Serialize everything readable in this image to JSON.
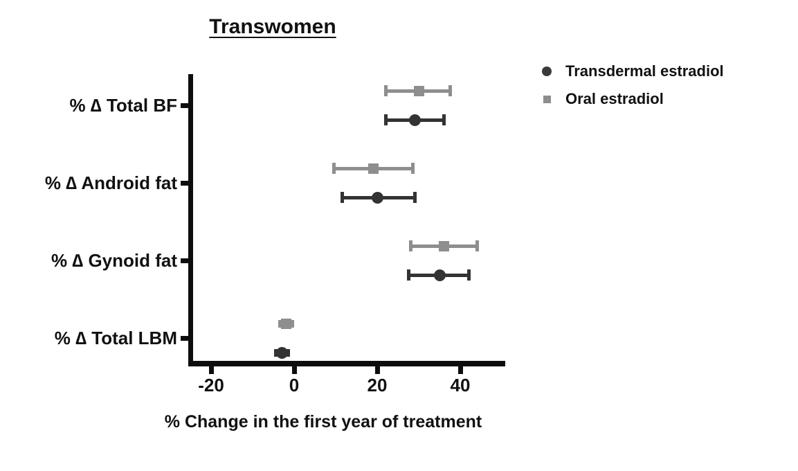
{
  "title": "Transwomen",
  "legend": {
    "items": [
      {
        "label": "Transdermal estradiol",
        "marker": "circle-icon",
        "color": "#3a3a3a"
      },
      {
        "label": "Oral estradiol",
        "marker": "square-icon",
        "color": "#8e8e8e"
      }
    ]
  },
  "chart_data": {
    "type": "scatter",
    "subtype": "horizontal-dot-plot-with-error-bars",
    "title": "Transwomen",
    "xlabel": "% Change in the first year of treatment",
    "ylabel": "",
    "categories": [
      "% ∆ Total BF",
      "% ∆ Android fat",
      "% ∆ Gynoid fat",
      "% ∆ Total LBM"
    ],
    "xticks": [
      -20,
      0,
      20,
      40
    ],
    "xtick_labels": [
      "-20",
      "0",
      "20",
      "40"
    ],
    "xlim": [
      -25.5,
      51
    ],
    "grid": false,
    "legend_position": "top-right",
    "series": [
      {
        "name": "Oral estradiol",
        "marker": "square",
        "color": "#8e8e8e",
        "values": [
          30,
          19,
          36,
          -2
        ],
        "ci_low": [
          22,
          9.5,
          28,
          -3.5
        ],
        "ci_high": [
          37.5,
          28.5,
          44,
          -0.5
        ]
      },
      {
        "name": "Transdermal estradiol",
        "marker": "circle",
        "color": "#333333",
        "values": [
          29,
          20,
          35,
          -3
        ],
        "ci_low": [
          22,
          11.5,
          27.5,
          -4.5
        ],
        "ci_high": [
          36,
          29,
          42,
          -1.5
        ]
      }
    ]
  }
}
